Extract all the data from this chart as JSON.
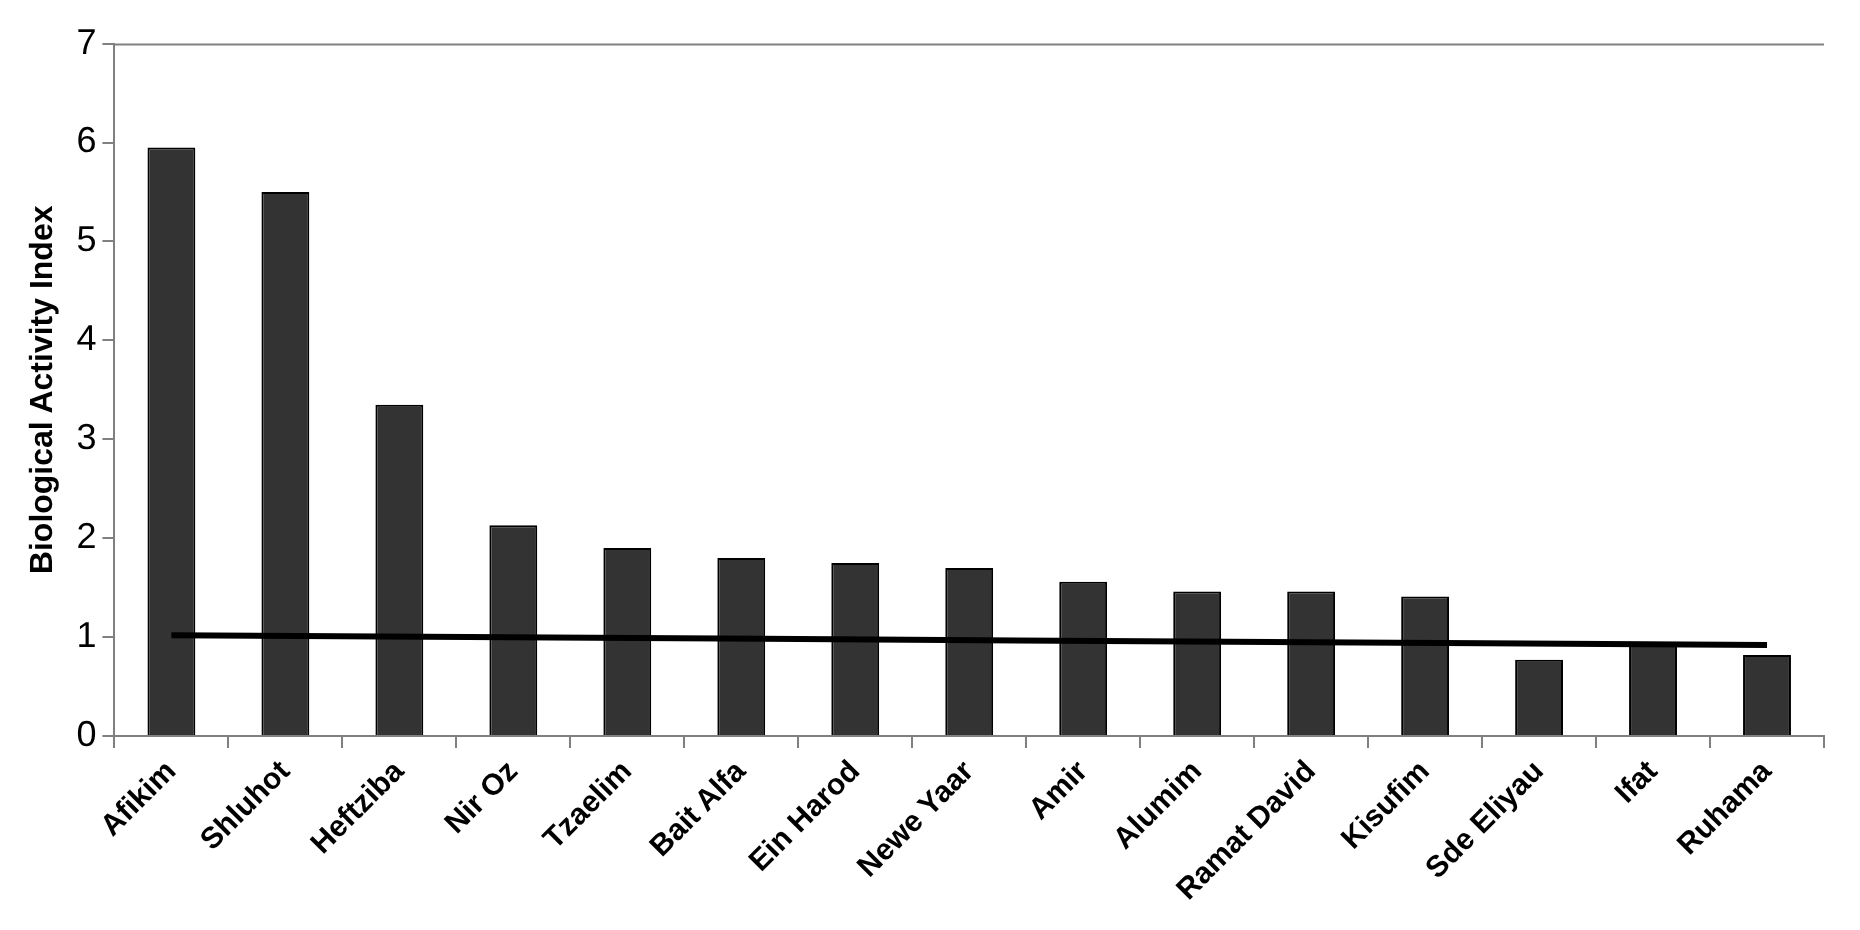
{
  "chart_data": {
    "type": "bar",
    "ylabel": "Biological Activity Index",
    "categories": [
      "Afikim",
      "Shluhot",
      "Heftziba",
      "Nir Oz",
      "Tzaelim",
      "Bait Alfa",
      "Ein Harod",
      "Newe Yaar",
      "Amir",
      "Alumim",
      "Ramat David",
      "Kisufim",
      "Sde Eliyau",
      "Ifat",
      "Ruhama"
    ],
    "series": [
      {
        "color": "#333333",
        "values": [
          5.95,
          5.5,
          3.35,
          2.13,
          1.9,
          1.8,
          1.75,
          1.7,
          1.56,
          1.46,
          1.46,
          1.41,
          0.77,
          0.92,
          0.82
        ]
      },
      {
        "type": "line",
        "color": "#000000",
        "x": [
          "Afikim",
          "Ruhama"
        ],
        "values": [
          1.02,
          0.92
        ]
      }
    ],
    "ylim": [
      0,
      7
    ],
    "yticks": [
      0,
      1,
      2,
      3,
      4,
      5,
      6,
      7
    ],
    "grid": false,
    "legend": false
  }
}
